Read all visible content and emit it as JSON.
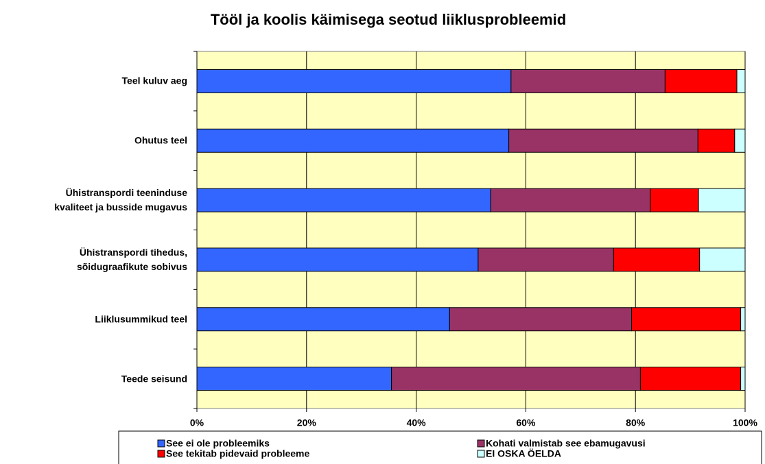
{
  "chart_data": {
    "type": "stacked_barh",
    "title": "Tööl ja koolis käimisega seotud liiklusprobleemid",
    "categories": [
      "Teel kuluv aeg",
      "Ohutus teel",
      "Ühistranspordi teeninduse\nkvaliteet ja busside mugavus",
      "Ühistranspordi tihedus,\nsõidugraafikute sobivus",
      "Liiklusummikud teel",
      "Teede seisund"
    ],
    "series": [
      {
        "name": "See ei ole probleemiks",
        "color": "#3366ff",
        "values": [
          57.3,
          56.9,
          53.6,
          51.3,
          46.1,
          35.5
        ]
      },
      {
        "name": "Kohati valmistab see ebamugavusi",
        "color": "#993366",
        "values": [
          28.1,
          34.5,
          29.1,
          24.7,
          33.2,
          45.4
        ]
      },
      {
        "name": "See tekitab pidevaid probleeme",
        "color": "#ff0000",
        "values": [
          13.1,
          6.7,
          8.8,
          15.7,
          19.9,
          18.3
        ]
      },
      {
        "name": "EI OSKA ÖELDA",
        "color": "#ccffff",
        "values": [
          1.5,
          1.9,
          8.5,
          8.3,
          0.8,
          0.8
        ]
      }
    ],
    "xlim": [
      0,
      100
    ],
    "xticks": [
      {
        "value": 0,
        "label": "0%"
      },
      {
        "value": 20,
        "label": "20%"
      },
      {
        "value": 40,
        "label": "40%"
      },
      {
        "value": 60,
        "label": "60%"
      },
      {
        "value": 80,
        "label": "80%"
      },
      {
        "value": 100,
        "label": "100%"
      }
    ],
    "grid": true
  }
}
